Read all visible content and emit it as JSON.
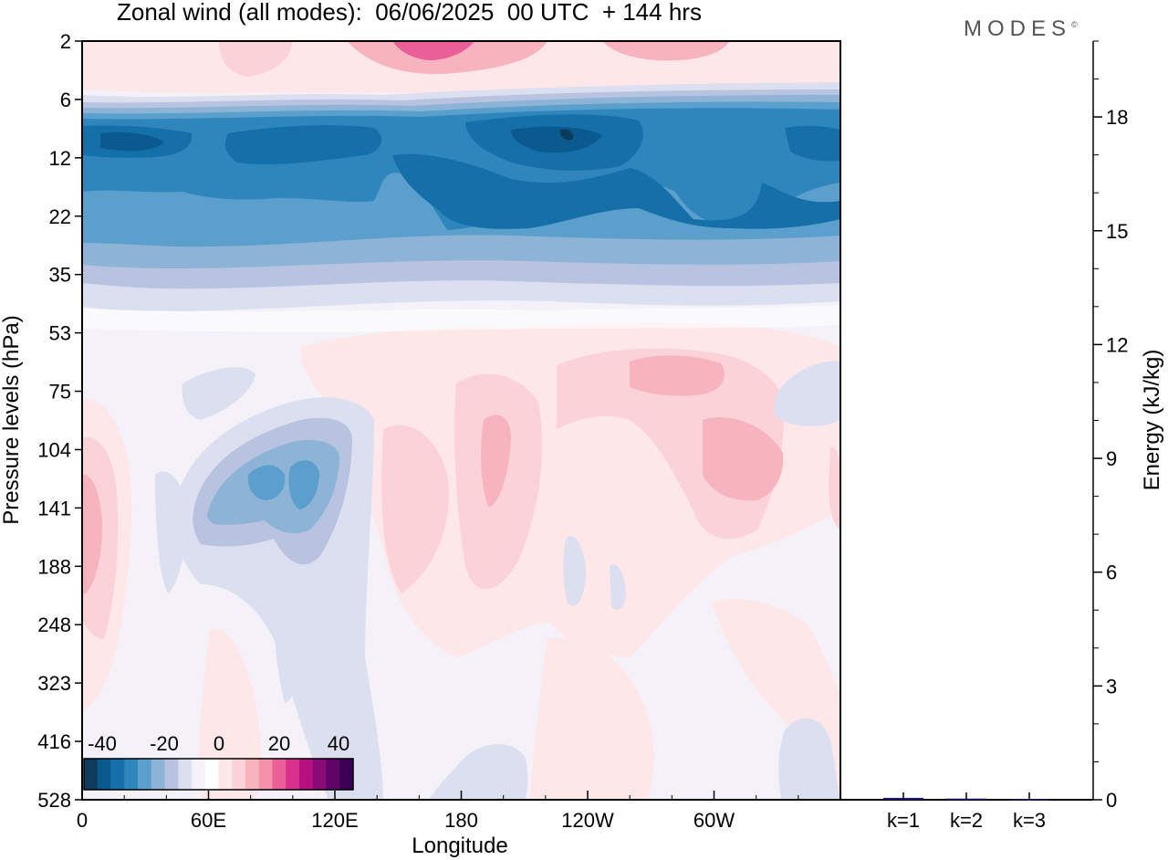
{
  "title": "Zonal wind (all modes):  06/06/2025  00 UTC  + 144 hrs",
  "brand": "MODES",
  "brand_mark": "©",
  "chart_data": [
    {
      "type": "heatmap",
      "title": "Zonal wind (all modes):  06/06/2025  00 UTC  + 144 hrs",
      "xlabel": "Longitude",
      "ylabel": "Pressure levels (hPa)",
      "x_ticks": [
        "0",
        "60E",
        "120E",
        "180",
        "120W",
        "60W"
      ],
      "x_tick_degrees": [
        0,
        60,
        120,
        180,
        240,
        300
      ],
      "xlim_degrees": [
        0,
        360
      ],
      "y_ticks": [
        2,
        6,
        12,
        22,
        35,
        53,
        75,
        104,
        141,
        188,
        248,
        323,
        416,
        528
      ],
      "y_scale": "categorical model levels, pressure increasing downward",
      "colorbar": {
        "tick_labels": [
          "-40",
          "-20",
          "0",
          "20",
          "40"
        ],
        "placement": "bottom-left inside plot",
        "colors": [
          "#0d3b5c",
          "#0b5a8f",
          "#1570aa",
          "#2f86bd",
          "#5b9fcc",
          "#8db3d6",
          "#b8c3e0",
          "#dcdff0",
          "#f4f2f8",
          "#ffffff",
          "#fde7e9",
          "#fbd2d7",
          "#f7b3be",
          "#f391a8",
          "#ea5f98",
          "#d8308c",
          "#b51280",
          "#8a0a76",
          "#5e0567",
          "#3a0056"
        ]
      }
    },
    {
      "type": "bar",
      "ylabel": "Energy (kJ/kg)",
      "categories": [
        "k=1",
        "k=2",
        "k=3"
      ],
      "values": [
        0.05,
        0.03,
        0.02
      ],
      "ylim": [
        0,
        20
      ],
      "y_ticks": [
        0,
        3,
        6,
        9,
        12,
        15,
        18
      ],
      "y_axis_side": "right",
      "bar_color": "#1a1a6e"
    }
  ]
}
